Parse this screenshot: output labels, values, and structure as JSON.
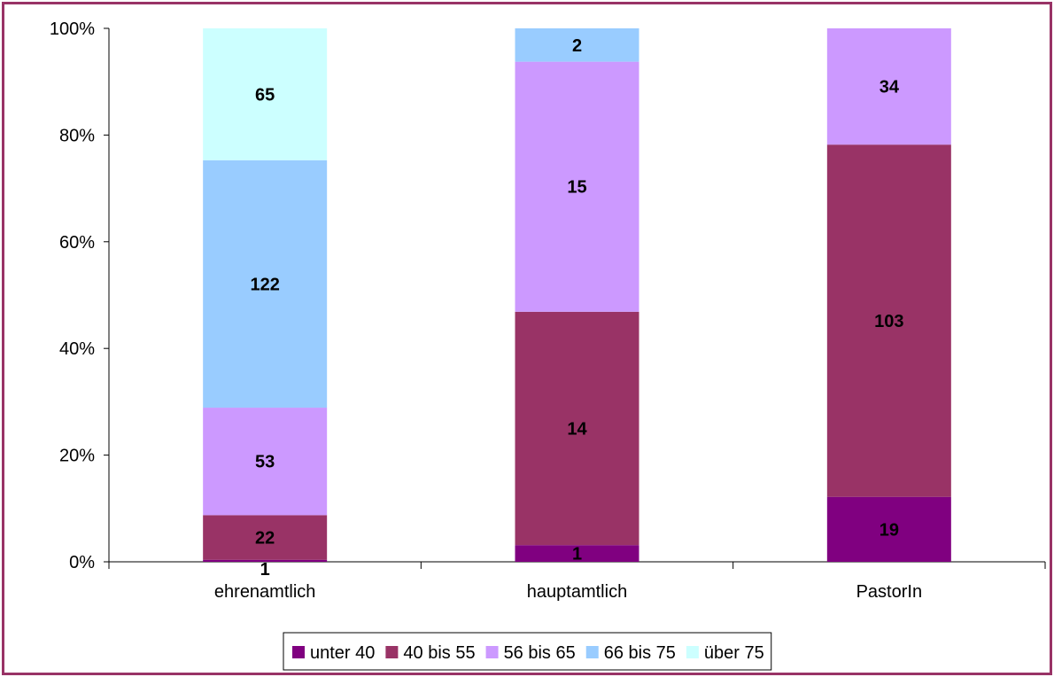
{
  "chart_data": {
    "type": "bar",
    "stacked": "percent",
    "categories": [
      "ehrenamtlich",
      "hauptamtlich",
      "PastorIn"
    ],
    "series": [
      {
        "name": "unter 40",
        "color": "#800080",
        "values": [
          1,
          1,
          19
        ]
      },
      {
        "name": "40 bis 55",
        "color": "#993366",
        "values": [
          22,
          14,
          103
        ]
      },
      {
        "name": "56 bis 65",
        "color": "#CC99FF",
        "values": [
          53,
          15,
          34
        ]
      },
      {
        "name": "66 bis 75",
        "color": "#99CCFF",
        "values": [
          122,
          2,
          0
        ]
      },
      {
        "name": "über 75",
        "color": "#CCFFFF",
        "values": [
          65,
          0,
          0
        ]
      }
    ],
    "y_ticks": [
      "0%",
      "20%",
      "40%",
      "60%",
      "80%",
      "100%"
    ],
    "ylim": [
      0,
      100
    ],
    "title": "",
    "xlabel": "",
    "ylabel": "",
    "legend_position": "bottom",
    "grid": false,
    "frame_color": "#993366"
  }
}
